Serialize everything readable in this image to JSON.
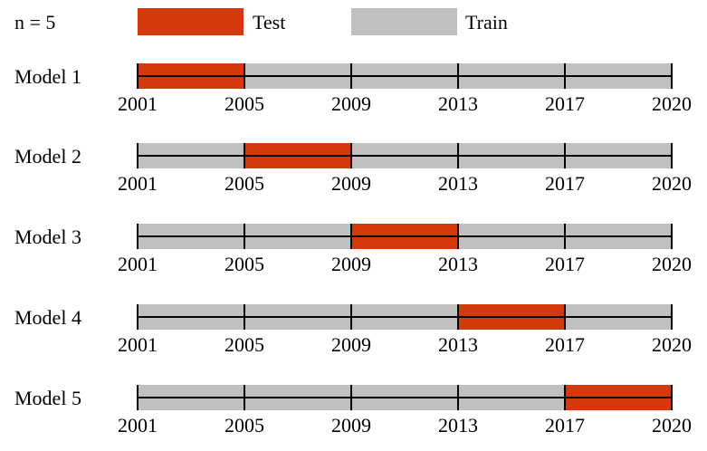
{
  "header": {
    "n_label": "n = 5",
    "legend": [
      {
        "label": "Test",
        "color": "#d23a0c"
      },
      {
        "label": "Train",
        "color": "#c0c0c0"
      }
    ]
  },
  "colors": {
    "test": "#d23a0c",
    "train": "#c0c0c0",
    "line": "#000000"
  },
  "years": [
    "2001",
    "2005",
    "2009",
    "2013",
    "2017",
    "2020"
  ],
  "models": [
    {
      "label": "Model 1",
      "test_segment": 0
    },
    {
      "label": "Model 2",
      "test_segment": 1
    },
    {
      "label": "Model 3",
      "test_segment": 2
    },
    {
      "label": "Model 4",
      "test_segment": 3
    },
    {
      "label": "Model 5",
      "test_segment": 4
    }
  ]
}
